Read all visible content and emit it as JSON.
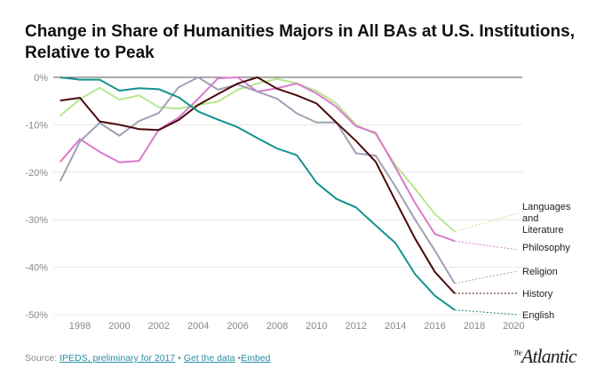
{
  "title": "Change in Share of Humanities Majors in All BAs at U.S. Institutions, Relative to Peak",
  "footer": {
    "source_label": "Source:",
    "source_link": "IPEDS, preliminary for 2017",
    "sep": "•",
    "data_link": "Get the data",
    "embed_link": "Embed"
  },
  "logo": "The Atlantic",
  "chart_data": {
    "type": "line",
    "title": "Change in Share of Humanities Majors in All BAs at U.S. Institutions, Relative to Peak",
    "xlim": [
      1997,
      2020
    ],
    "ylim": [
      -50,
      0
    ],
    "x_ticks": [
      "1998",
      "2000",
      "2002",
      "2004",
      "2006",
      "2008",
      "2010",
      "2012",
      "2014",
      "2016",
      "2018",
      "2020"
    ],
    "y_ticks": [
      "0%",
      "-10%",
      "-20%",
      "-30%",
      "-40%",
      "-50%"
    ],
    "grid": true,
    "legend": "direct labels at right",
    "x": [
      1997,
      1998,
      1999,
      2000,
      2001,
      2002,
      2003,
      2004,
      2005,
      2006,
      2007,
      2008,
      2009,
      2010,
      2011,
      2012,
      2013,
      2014,
      2015,
      2016,
      2017
    ],
    "series": [
      {
        "name": "Languages and Literature",
        "color": "#b5e88c",
        "values": [
          -8.1,
          -4.6,
          -2.2,
          -4.7,
          -3.8,
          -6.3,
          -6.6,
          -5.8,
          -5.1,
          -2.6,
          -1.3,
          -0.3,
          -1.3,
          -2.9,
          -5.5,
          -10,
          -12,
          -18.5,
          -23.5,
          -28.8,
          -32.5
        ]
      },
      {
        "name": "Philosophy",
        "color": "#d97bcc",
        "values": [
          -17.8,
          -13,
          -15.7,
          -17.9,
          -17.6,
          -11,
          -8.5,
          -4.5,
          -0.2,
          0,
          -3,
          -2.3,
          -1.3,
          -3.4,
          -6.2,
          -10.3,
          -11.7,
          -19,
          -26.5,
          -33,
          -34.5
        ]
      },
      {
        "name": "Religion",
        "color": "#a29fb5",
        "values": [
          -21.9,
          -13.5,
          -9.6,
          -12.3,
          -9.2,
          -7.5,
          -2.1,
          0,
          -2.6,
          -1.5,
          -3,
          -4.5,
          -7.6,
          -9.5,
          -9.5,
          -16,
          -16.5,
          -23,
          -30,
          -36.5,
          -43.4
        ]
      },
      {
        "name": "History",
        "color": "#4a0a0a",
        "values": [
          -4.9,
          -4.3,
          -9.3,
          -10,
          -10.9,
          -11.1,
          -9,
          -5.8,
          -3.5,
          -1.3,
          0,
          -2.4,
          -3.8,
          -5.5,
          -9.5,
          -13.4,
          -17.8,
          -26,
          -34,
          -41,
          -45.5
        ]
      },
      {
        "name": "English",
        "color": "#14928e",
        "values": [
          0,
          -0.5,
          -0.5,
          -2.8,
          -2.3,
          -2.5,
          -4.2,
          -7.2,
          -8.9,
          -10.5,
          -12.8,
          -15,
          -16.4,
          -22.2,
          -25.6,
          -27.4,
          -31.2,
          -34.9,
          -41.5,
          -46,
          -49
        ]
      }
    ]
  }
}
